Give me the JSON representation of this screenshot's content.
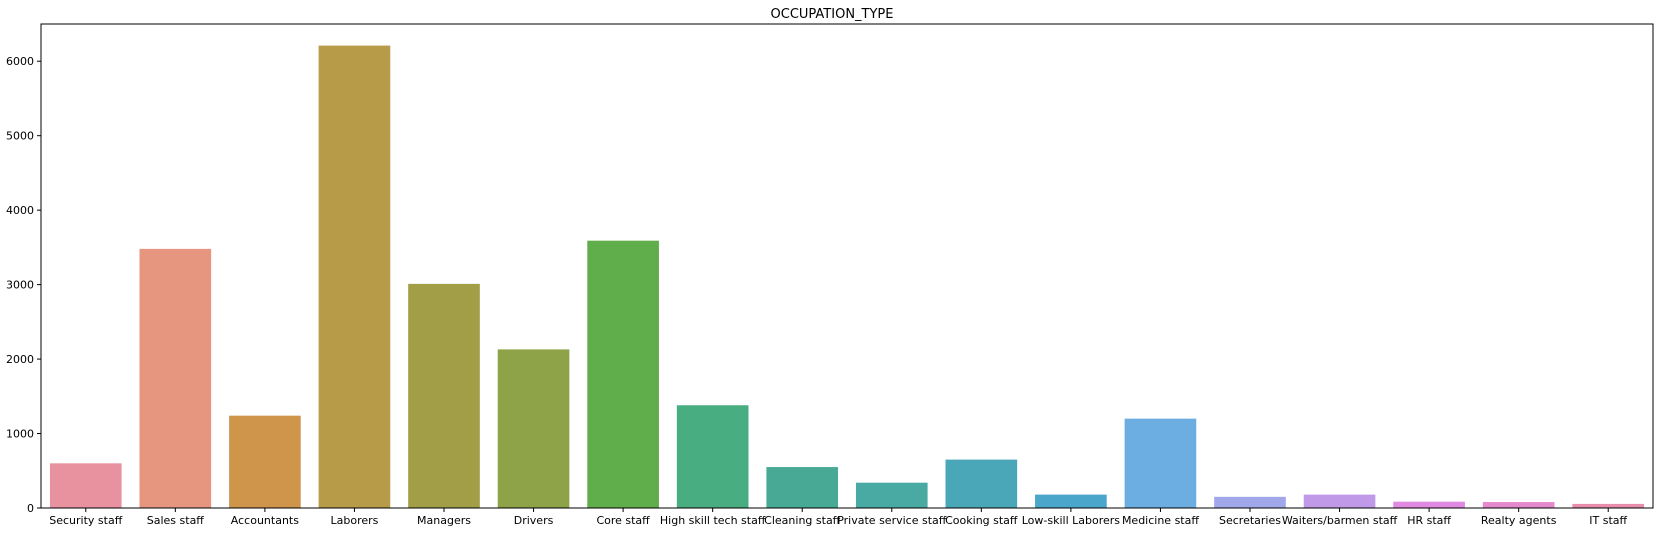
{
  "chart_data": {
    "type": "bar",
    "title": "OCCUPATION_TYPE",
    "xlabel": "",
    "ylabel": "",
    "categories": [
      "Security staff",
      "Sales staff",
      "Accountants",
      "Laborers",
      "Managers",
      "Drivers",
      "Core staff",
      "High skill tech staff",
      "Cleaning staff",
      "Private service staff",
      "Cooking staff",
      "Low-skill Laborers",
      "Medicine staff",
      "Secretaries",
      "Waiters/barmen staff",
      "HR staff",
      "Realty agents",
      "IT staff"
    ],
    "values": [
      600,
      3480,
      1240,
      6210,
      3010,
      2130,
      3590,
      1380,
      550,
      340,
      650,
      180,
      1200,
      150,
      180,
      85,
      80,
      55
    ],
    "colors": [
      "#e8919f",
      "#e6957e",
      "#cf964b",
      "#b89b48",
      "#a29e48",
      "#8ea348",
      "#5fad4b",
      "#48ad81",
      "#48aa95",
      "#48aaa2",
      "#49a7b7",
      "#4aa6cb",
      "#6daee2",
      "#a1a8ea",
      "#c09ae8",
      "#e18ae2",
      "#e489cc",
      "#e88eab"
    ],
    "ylim": [
      0,
      6500
    ],
    "yticks": [
      0,
      1000,
      2000,
      3000,
      4000,
      5000,
      6000
    ],
    "grid": false,
    "legend": "none"
  }
}
